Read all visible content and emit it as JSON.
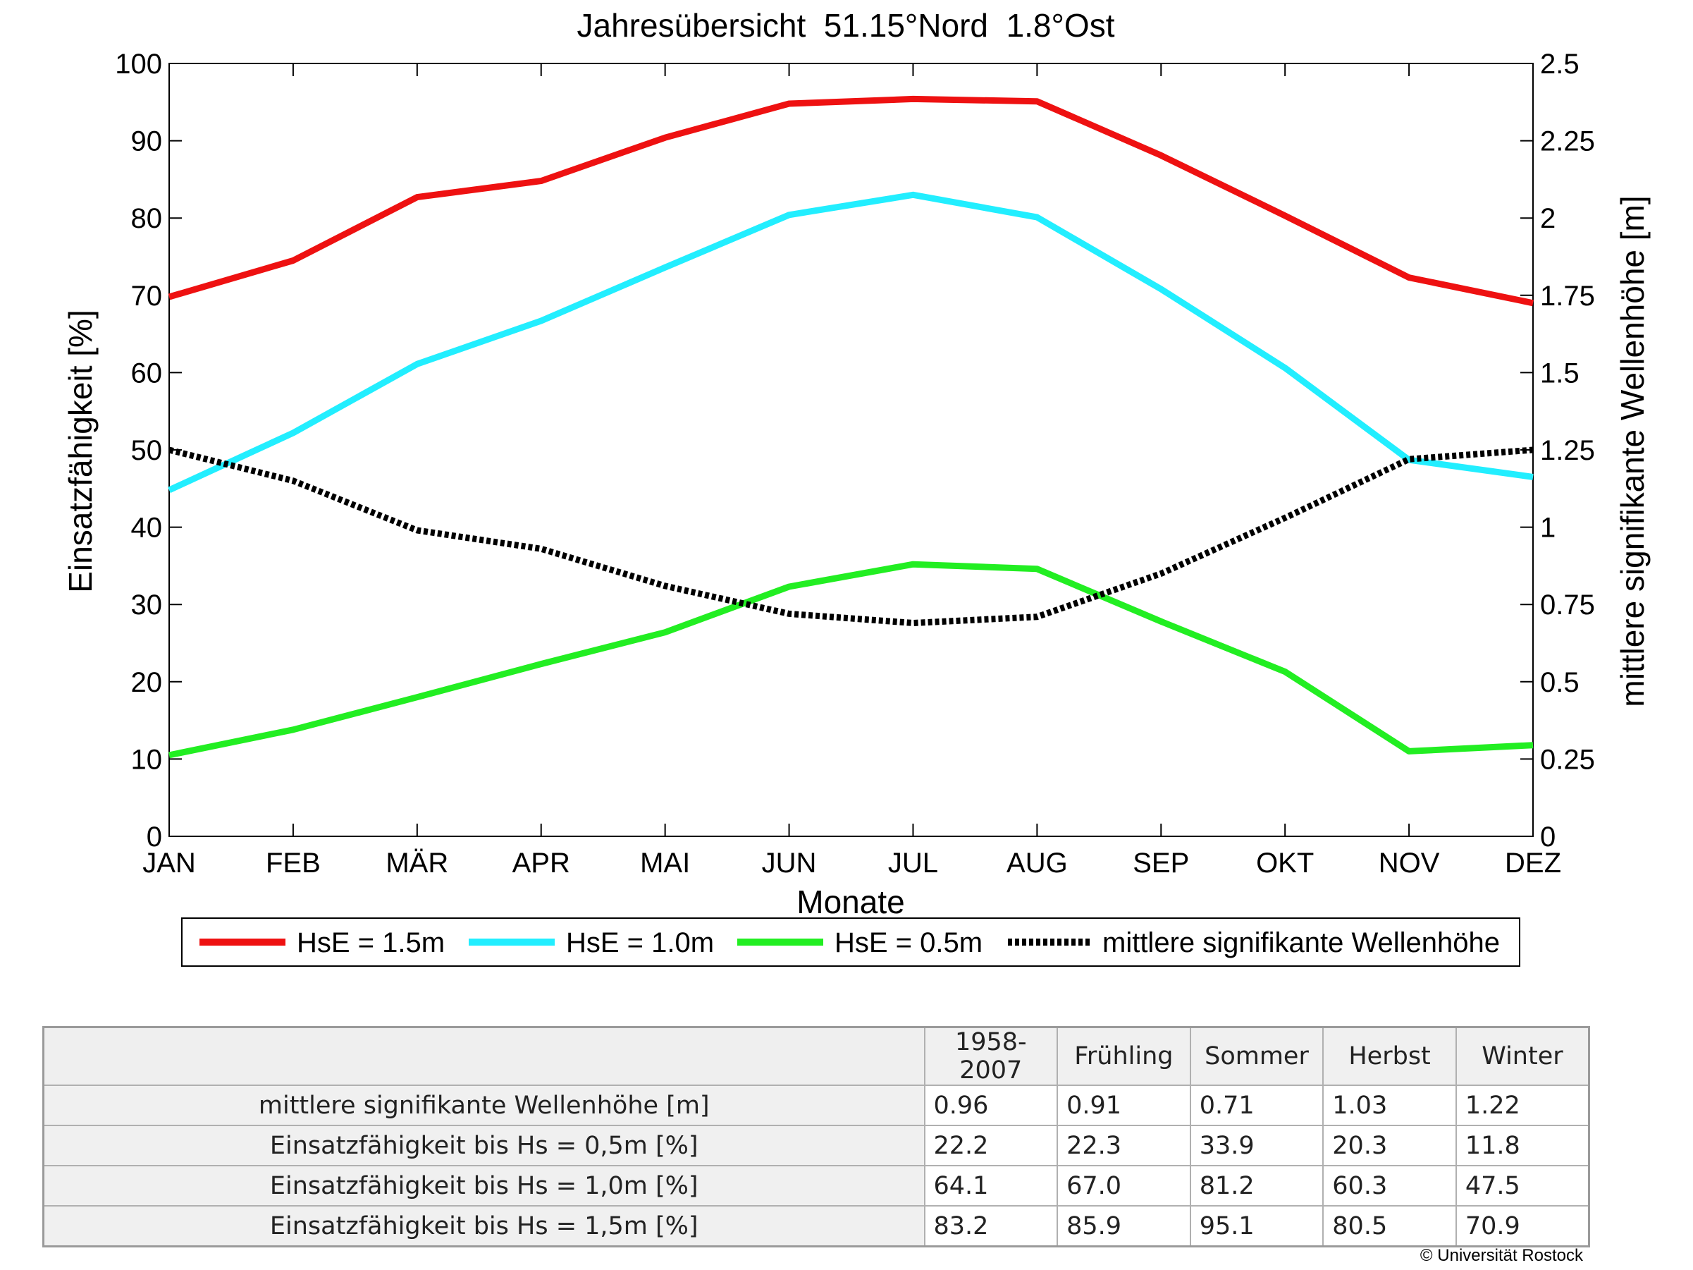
{
  "chart_data": {
    "type": "line",
    "title": "Jahresübersicht  51.15°Nord  1.8°Ost",
    "xlabel": "Monate",
    "ylabel": "Einsatzfähigkeit [%]",
    "ylabel_right": "mittlere signifikante Wellenhöhe [m]",
    "categories": [
      "JAN",
      "FEB",
      "MÄR",
      "APR",
      "MAI",
      "JUN",
      "JUL",
      "AUG",
      "SEP",
      "OKT",
      "NOV",
      "DEZ"
    ],
    "ylim": [
      0,
      100
    ],
    "ylim_right": [
      0,
      2.5
    ],
    "yticks": [
      "0",
      "10",
      "20",
      "30",
      "40",
      "50",
      "60",
      "70",
      "80",
      "90",
      "100"
    ],
    "yticks_right": [
      "0",
      "0.25",
      "0.5",
      "0.75",
      "1",
      "1.25",
      "1.5",
      "1.75",
      "2",
      "2.25",
      "2.5"
    ],
    "grid": false,
    "legend_position": "bottom",
    "series": [
      {
        "name": "HsE = 1.5m",
        "axis": "left",
        "color": "#ee1111",
        "style": "solid",
        "values": [
          69.8,
          74.5,
          82.7,
          84.8,
          90.4,
          94.8,
          95.4,
          95.1,
          88.1,
          80.3,
          72.3,
          69.0
        ]
      },
      {
        "name": "HsE = 1.0m",
        "axis": "left",
        "color": "#22eeff",
        "style": "solid",
        "values": [
          44.8,
          52.2,
          61.1,
          66.7,
          73.6,
          80.4,
          83.0,
          80.1,
          70.8,
          60.6,
          48.7,
          46.5
        ]
      },
      {
        "name": "HsE = 0.5m",
        "axis": "left",
        "color": "#22ee22",
        "style": "solid",
        "values": [
          10.5,
          13.8,
          18.0,
          22.3,
          26.4,
          32.3,
          35.2,
          34.6,
          27.8,
          21.3,
          11.0,
          11.8
        ]
      },
      {
        "name": "mittlere signifikante Wellenhöhe",
        "axis": "right",
        "color": "#000000",
        "style": "dotted",
        "values": [
          1.25,
          1.15,
          0.99,
          0.93,
          0.81,
          0.72,
          0.69,
          0.71,
          0.85,
          1.03,
          1.22,
          1.25
        ]
      }
    ]
  },
  "table": {
    "columns": [
      "1958-2007",
      "Frühling",
      "Sommer",
      "Herbst",
      "Winter"
    ],
    "rows": [
      {
        "label": "mittlere signifikante Wellenhöhe [m]",
        "values": [
          "0.96",
          "0.91",
          "0.71",
          "1.03",
          "1.22"
        ]
      },
      {
        "label": "Einsatzfähigkeit bis Hs = 0,5m [%]",
        "values": [
          "22.2",
          "22.3",
          "33.9",
          "20.3",
          "11.8"
        ]
      },
      {
        "label": "Einsatzfähigkeit bis Hs = 1,0m [%]",
        "values": [
          "64.1",
          "67.0",
          "81.2",
          "60.3",
          "47.5"
        ]
      },
      {
        "label": "Einsatzfähigkeit bis Hs = 1,5m [%]",
        "values": [
          "83.2",
          "85.9",
          "95.1",
          "80.5",
          "70.9"
        ]
      }
    ]
  },
  "copyright": "© Universität Rostock"
}
